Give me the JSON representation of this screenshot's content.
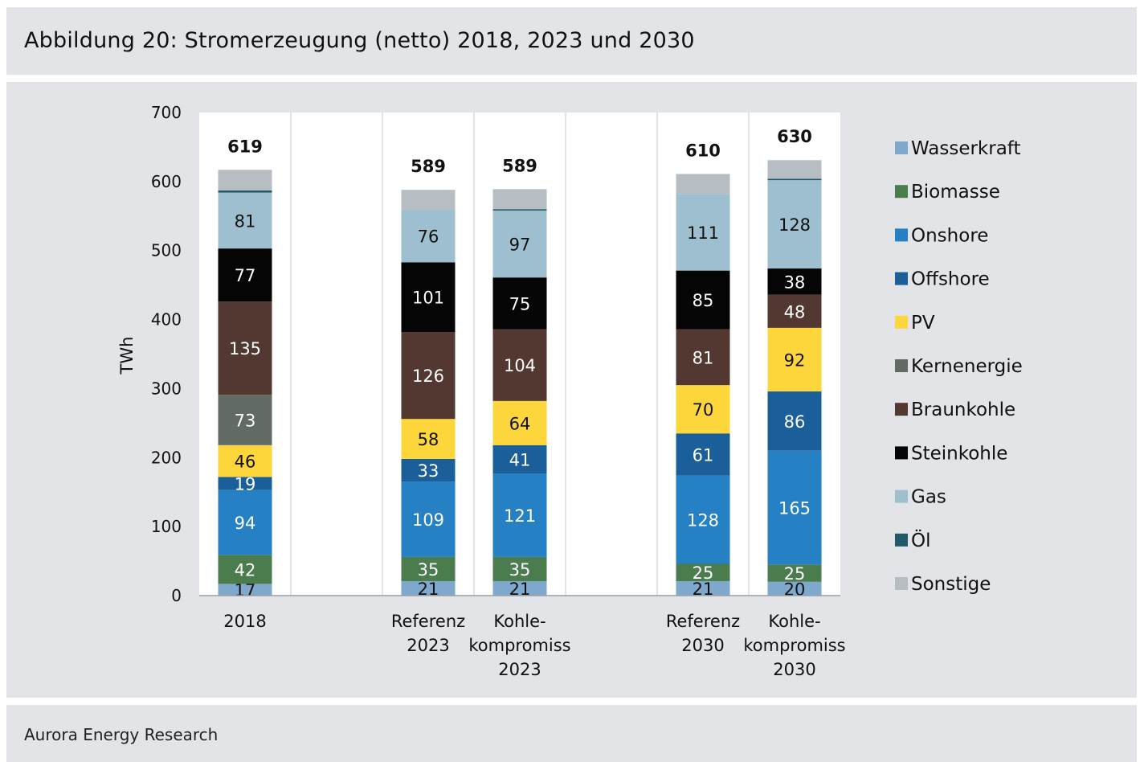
{
  "title": "Abbildung 20: Stromerzeugung (netto) 2018, 2023 und 2030",
  "source": "Aurora Energy Research",
  "chart_data": {
    "type": "bar",
    "stacked": true,
    "ylabel": "TWh",
    "ylim": [
      0,
      700
    ],
    "yticks": [
      "0",
      "100",
      "200",
      "300",
      "400",
      "500",
      "600",
      "700"
    ],
    "grid": "vertical separators between categories",
    "legend_position": "right",
    "categories": [
      [
        "2018"
      ],
      [
        "Referenz",
        "2023"
      ],
      [
        "Kohle-",
        "kompromiss",
        "2023"
      ],
      [
        "Referenz",
        "2030"
      ],
      [
        "Kohle-",
        "kompromiss",
        "2030"
      ]
    ],
    "totals": [
      "619",
      "589",
      "589",
      "610",
      "630"
    ],
    "series": [
      {
        "name": "Wasserkraft",
        "color": "#7ea8cc",
        "label_color": "#111111",
        "values": [
          17,
          21,
          21,
          21,
          20
        ]
      },
      {
        "name": "Biomasse",
        "color": "#4a7c4e",
        "label_color": "#ffffff",
        "values": [
          42,
          35,
          35,
          25,
          25
        ]
      },
      {
        "name": "Onshore",
        "color": "#2680c4",
        "label_color": "#ffffff",
        "values": [
          94,
          109,
          121,
          128,
          165
        ]
      },
      {
        "name": "Offshore",
        "color": "#1a5f9a",
        "label_color": "#ffffff",
        "values": [
          19,
          33,
          41,
          61,
          86
        ]
      },
      {
        "name": "PV",
        "color": "#fcd63a",
        "label_color": "#111111",
        "values": [
          46,
          58,
          64,
          70,
          92
        ]
      },
      {
        "name": "Kernenergie",
        "color": "#616b64",
        "label_color": "#ffffff",
        "values": [
          73,
          0,
          0,
          0,
          0
        ]
      },
      {
        "name": "Braunkohle",
        "color": "#533831",
        "label_color": "#ffffff",
        "values": [
          135,
          126,
          104,
          81,
          48
        ]
      },
      {
        "name": "Steinkohle",
        "color": "#050505",
        "label_color": "#ffffff",
        "values": [
          77,
          101,
          75,
          85,
          38
        ]
      },
      {
        "name": "Gas",
        "color": "#9dbfcf",
        "label_color": "#111111",
        "values": [
          81,
          76,
          97,
          111,
          128
        ]
      },
      {
        "name": "Öl",
        "color": "#1f5a66",
        "label_color": "#ffffff",
        "values": [
          3,
          0,
          2,
          0,
          2
        ]
      },
      {
        "name": "Sonstige",
        "color": "#b6bec4",
        "label_color": "#111111",
        "values": [
          30,
          29,
          29,
          29,
          27
        ]
      }
    ]
  }
}
